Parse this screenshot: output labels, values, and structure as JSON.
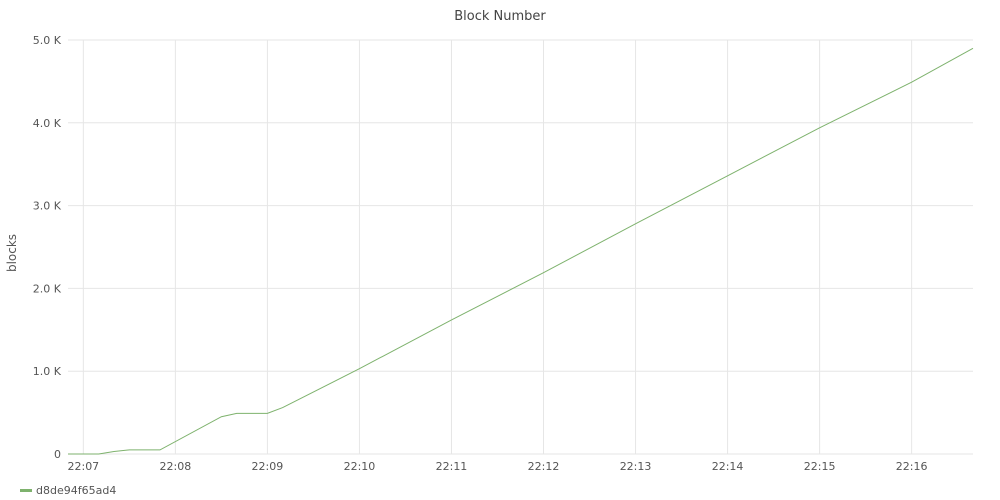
{
  "chart_data": {
    "type": "line",
    "title": "Block Number",
    "ylabel": "blocks",
    "xlabel": "",
    "ylim": [
      0,
      5000
    ],
    "y_ticks": [
      0,
      1000,
      2000,
      3000,
      4000,
      5000
    ],
    "y_tick_labels": [
      "0",
      "1.0 K",
      "2.0 K",
      "3.0 K",
      "4.0 K",
      "5.0 K"
    ],
    "x_ticks": [
      "22:07",
      "22:08",
      "22:09",
      "22:10",
      "22:11",
      "22:12",
      "22:13",
      "22:14",
      "22:15",
      "22:16"
    ],
    "x_range": [
      "22:06:50",
      "22:16:40"
    ],
    "grid": true,
    "legend_position": "bottom-left",
    "series": [
      {
        "name": "d8de94f65ad4",
        "color": "#7eb26d",
        "points": [
          [
            "22:06:50",
            0
          ],
          [
            "22:07:10",
            0
          ],
          [
            "22:07:20",
            30
          ],
          [
            "22:07:30",
            50
          ],
          [
            "22:07:50",
            50
          ],
          [
            "22:08:30",
            450
          ],
          [
            "22:08:40",
            490
          ],
          [
            "22:09:00",
            490
          ],
          [
            "22:09:10",
            560
          ],
          [
            "22:10:00",
            1030
          ],
          [
            "22:11:00",
            1620
          ],
          [
            "22:12:00",
            2190
          ],
          [
            "22:13:00",
            2780
          ],
          [
            "22:14:00",
            3360
          ],
          [
            "22:15:00",
            3940
          ],
          [
            "22:16:00",
            4490
          ],
          [
            "22:16:40",
            4900
          ]
        ]
      }
    ]
  }
}
